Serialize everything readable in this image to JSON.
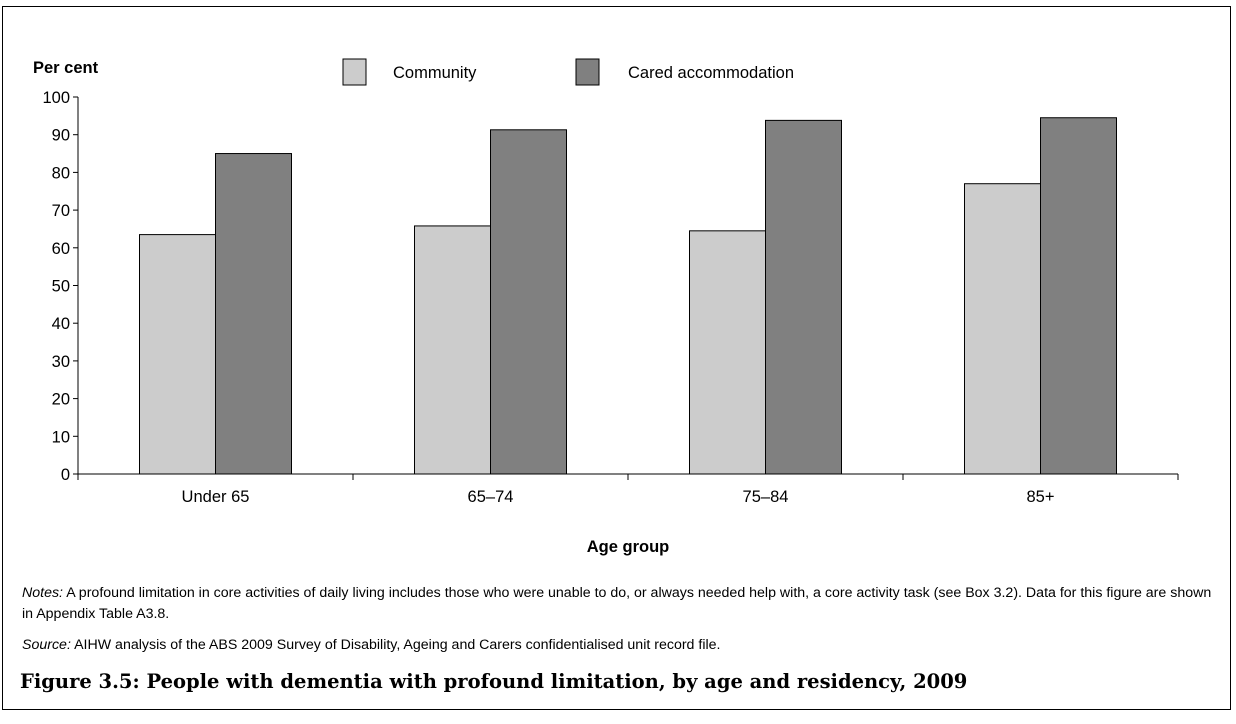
{
  "chart_data": {
    "type": "bar",
    "ylabel": "Per cent",
    "xlabel": "Age group",
    "categories": [
      "Under 65",
      "65–74",
      "75–84",
      "85+"
    ],
    "ylim": [
      0,
      100
    ],
    "yticks": [
      0,
      10,
      20,
      30,
      40,
      50,
      60,
      70,
      80,
      90,
      100
    ],
    "grid": false,
    "legend_position": "top-center",
    "series": [
      {
        "name": "Community",
        "values": [
          63.5,
          65.8,
          64.5,
          77.0
        ],
        "color": "#cccccc"
      },
      {
        "name": "Cared accommodation",
        "values": [
          85.0,
          91.3,
          93.8,
          94.5
        ],
        "color": "#808080"
      }
    ]
  },
  "notes": {
    "notes_label": "Notes:",
    "notes_text": "A profound limitation in core activities of daily living includes those who were unable to do, or always needed help with, a core activity task (see Box 3.2). Data for this figure are shown in Appendix Table A3.8.",
    "source_label": "Source:",
    "source_text": "AIHW analysis of the ABS 2009 Survey of Disability, Ageing and Carers confidentialised unit record file."
  },
  "caption": "Figure 3.5: People with dementia with profound limitation, by age and residency, 2009"
}
